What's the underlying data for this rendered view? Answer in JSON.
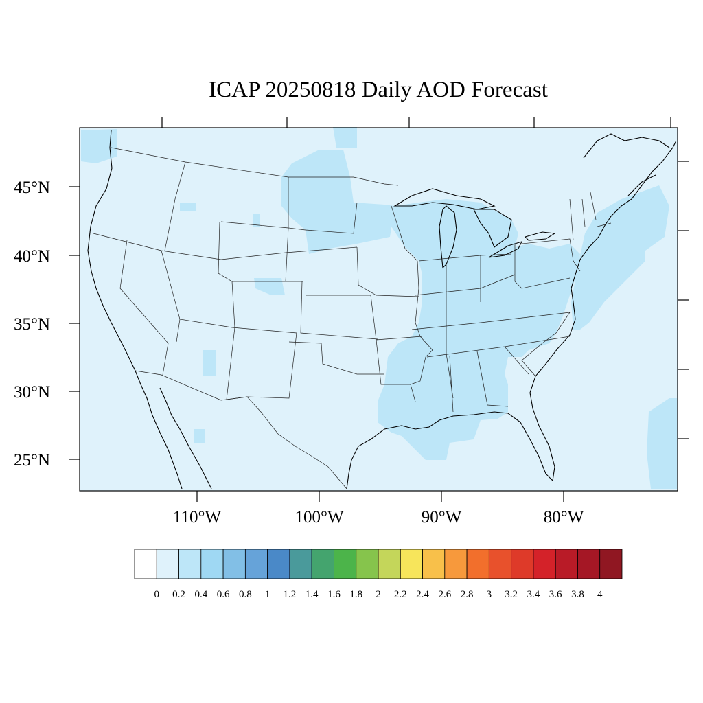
{
  "title": "ICAP 20250818 Daily AOD Forecast",
  "map": {
    "region": "United States",
    "background_color": "#dff2fb",
    "lat_labels": [
      "45°N",
      "40°N",
      "35°N",
      "30°N",
      "25°N"
    ],
    "lon_labels": [
      "110°W",
      "100°W",
      "90°W",
      "80°W"
    ]
  },
  "colorbar": {
    "labels": [
      "0",
      "0.2",
      "0.4",
      "0.6",
      "0.8",
      "1",
      "1.2",
      "1.4",
      "1.6",
      "1.8",
      "2",
      "2.2",
      "2.4",
      "2.6",
      "2.8",
      "3",
      "3.2",
      "3.4",
      "3.6",
      "3.8",
      "4"
    ],
    "colors": [
      "#ffffff",
      "#dff2fb",
      "#bde6f8",
      "#9fd8f3",
      "#82bfe6",
      "#66a3d9",
      "#4a89c8",
      "#4a9a9b",
      "#44a46e",
      "#4cb44a",
      "#86c44c",
      "#c4d65a",
      "#f7e55b",
      "#f8c04a",
      "#f7993c",
      "#f26f2c",
      "#e8512c",
      "#de3a29",
      "#d42229",
      "#b91b27",
      "#a51725",
      "#901722"
    ]
  }
}
